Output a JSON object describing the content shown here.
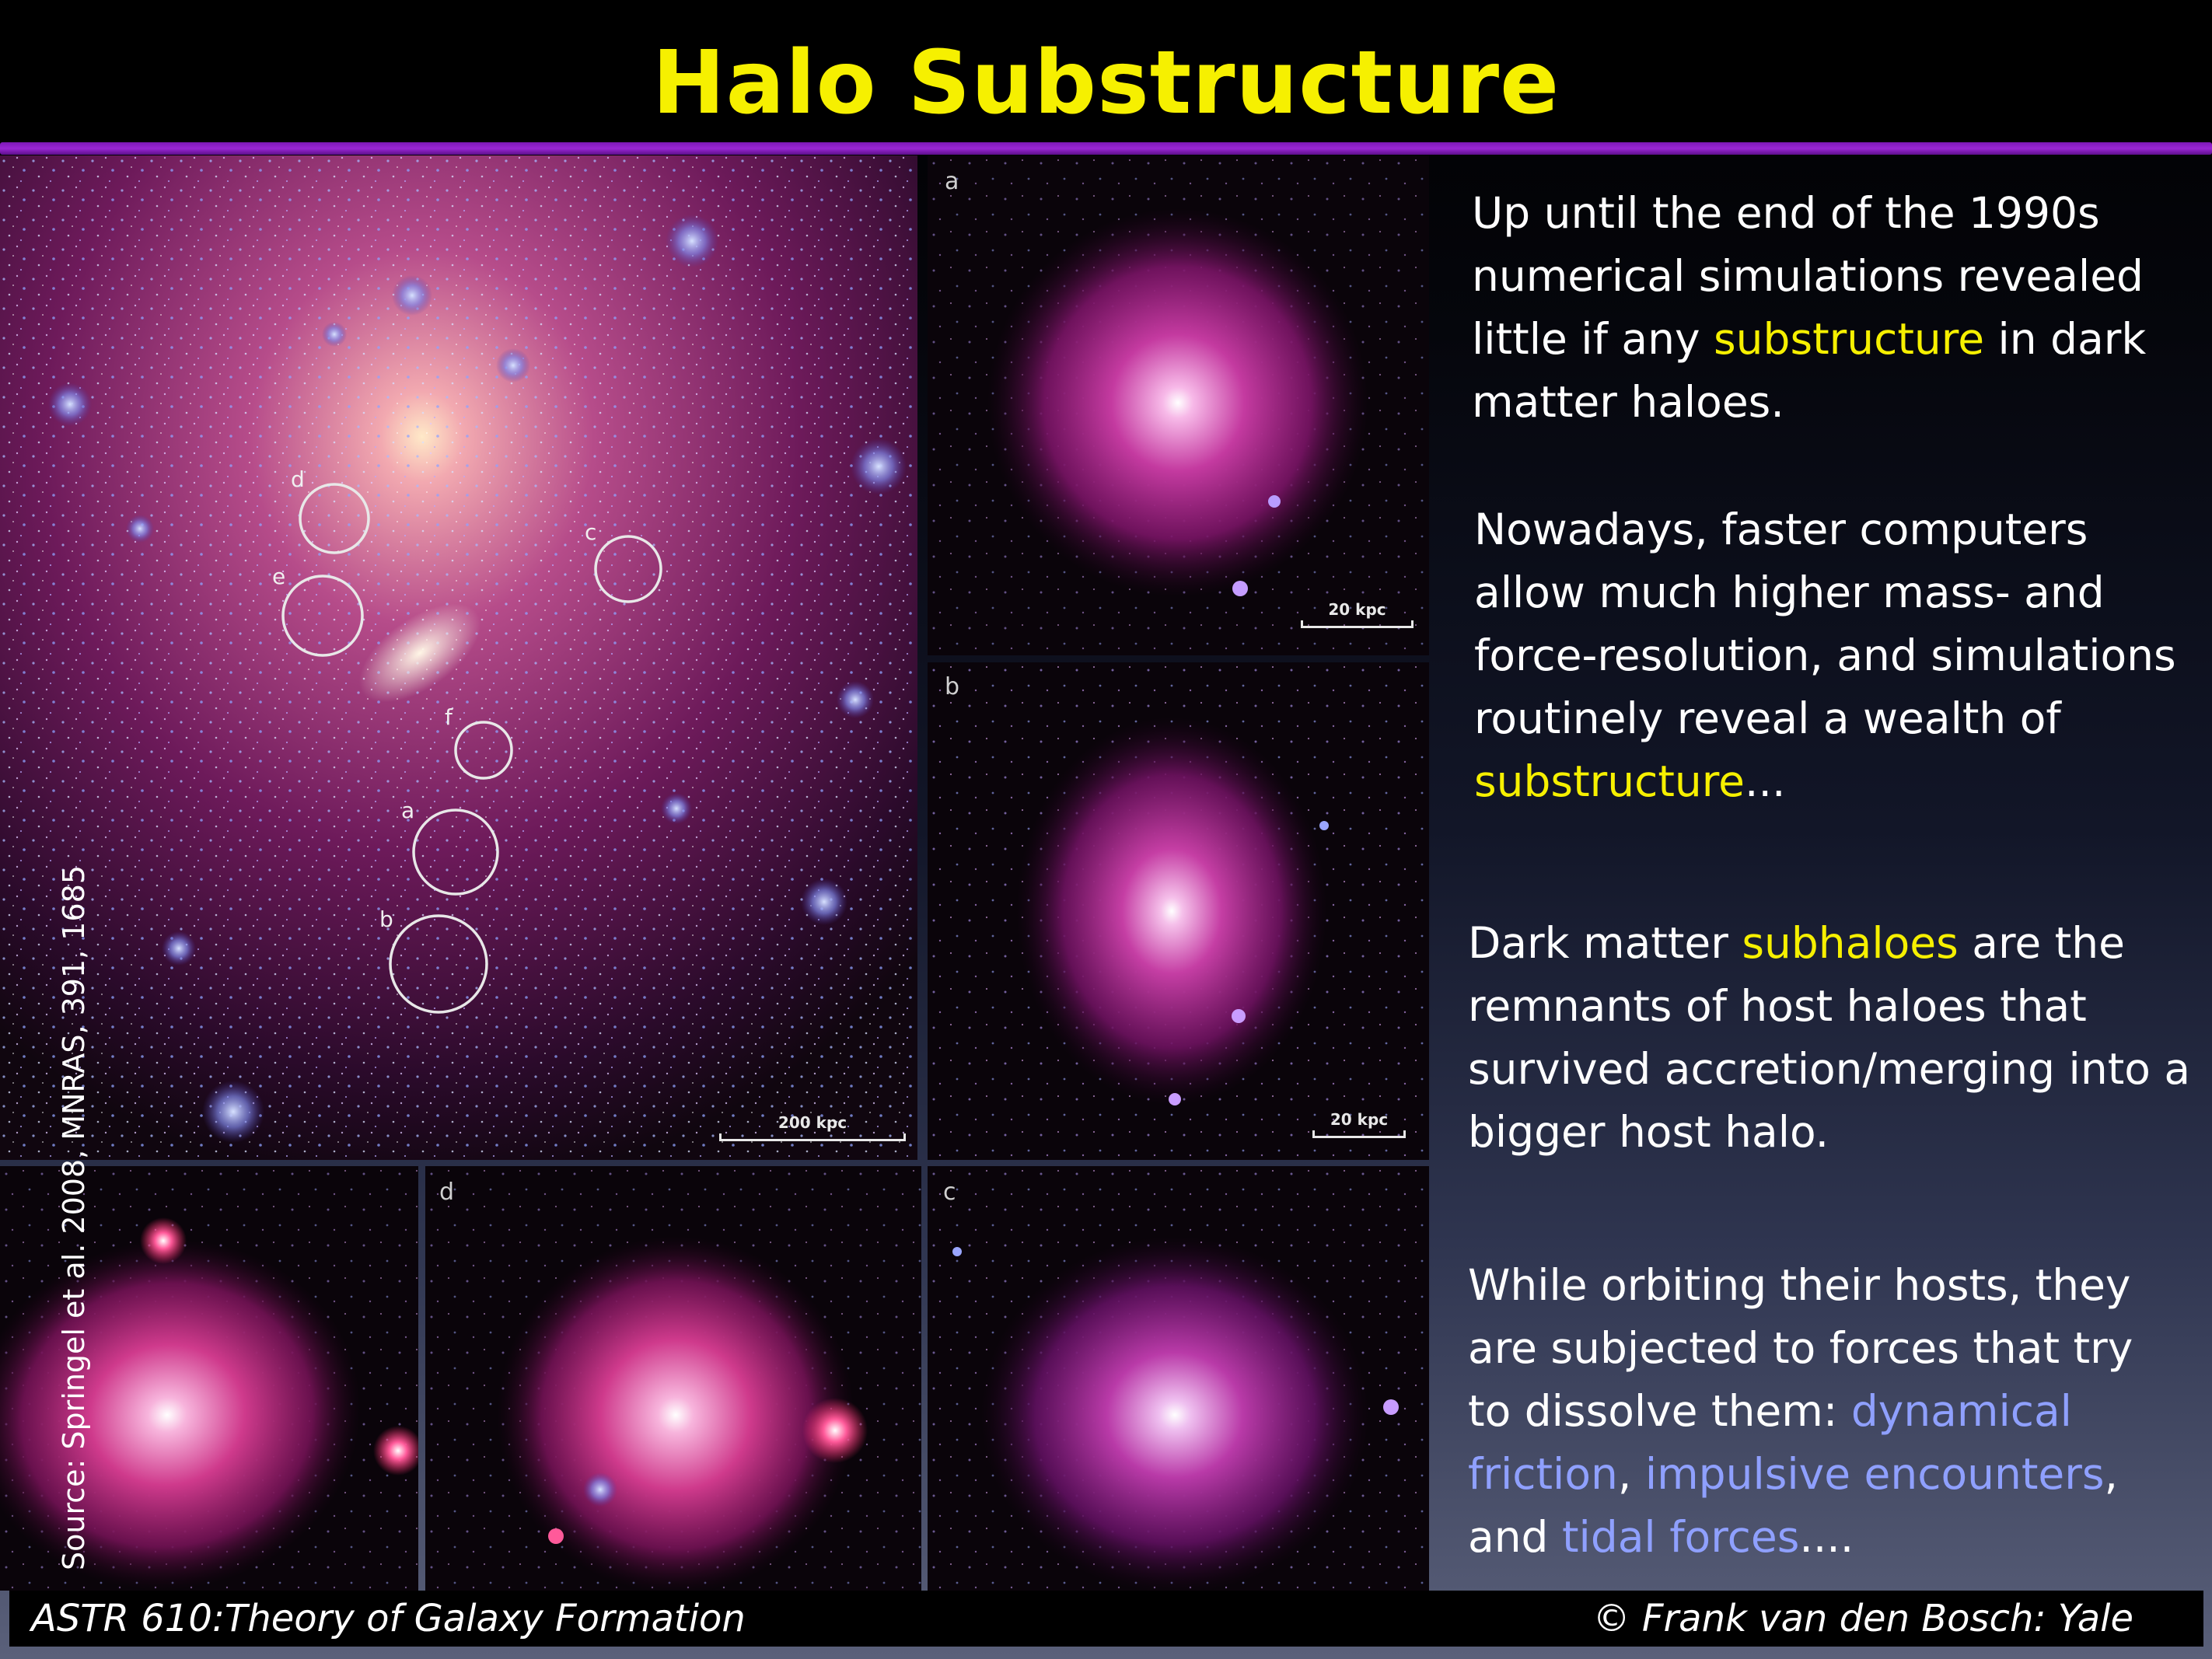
{
  "slide": {
    "title": "Halo Substructure",
    "source_credit": "Source: Springel et al. 2008, MNRAS, 391, 1685",
    "main_panel": {
      "circle_labels": [
        "d",
        "e",
        "c",
        "f",
        "a",
        "b"
      ],
      "scale_label": "200 kpc"
    },
    "panels": [
      {
        "letter": "a",
        "scale_label": "20 kpc"
      },
      {
        "letter": "b",
        "scale_label": "20 kpc"
      },
      {
        "letter": "",
        "scale_label": ""
      },
      {
        "letter": "d",
        "scale_label": ""
      },
      {
        "letter": "c",
        "scale_label": ""
      }
    ],
    "paragraphs": [
      {
        "lines": [
          [
            {
              "t": "Up until the end of the 1990s"
            }
          ],
          [
            {
              "t": "numerical simulations revealed"
            }
          ],
          [
            {
              "t": "little if any "
            },
            {
              "t": "substructure",
              "hl": "y"
            },
            {
              "t": " in dark"
            }
          ],
          [
            {
              "t": "matter haloes."
            }
          ]
        ]
      },
      {
        "lines": [
          [
            {
              "t": "Nowadays, faster computers"
            }
          ],
          [
            {
              "t": "allow much higher mass- and"
            }
          ],
          [
            {
              "t": "force-resolution, and simulations"
            }
          ],
          [
            {
              "t": "routinely reveal a wealth of"
            }
          ],
          [
            {
              "t": "substructure",
              "hl": "y"
            },
            {
              "t": "..."
            }
          ]
        ]
      },
      {
        "lines": [
          [
            {
              "t": "Dark matter "
            },
            {
              "t": "subhaloes",
              "hl": "y"
            },
            {
              "t": " are the"
            }
          ],
          [
            {
              "t": "remnants of host haloes that"
            }
          ],
          [
            {
              "t": "survived accretion/merging into a"
            }
          ],
          [
            {
              "t": "bigger host halo."
            }
          ]
        ]
      },
      {
        "lines": [
          [
            {
              "t": "While orbiting their hosts, they"
            }
          ],
          [
            {
              "t": "are subjected to forces that try"
            }
          ],
          [
            {
              "t": "to dissolve them: "
            },
            {
              "t": "dynamical",
              "hl": "b"
            }
          ],
          [
            {
              "t": "friction",
              "hl": "b"
            },
            {
              "t": ", "
            },
            {
              "t": "impulsive encounters",
              "hl": "b"
            },
            {
              "t": ","
            }
          ],
          [
            {
              "t": "and "
            },
            {
              "t": "tidal forces",
              "hl": "b"
            },
            {
              "t": "...."
            }
          ]
        ]
      }
    ],
    "footer": {
      "left": "ASTR 610:Theory of Galaxy Formation",
      "right": "© Frank van den Bosch: Yale"
    },
    "colors": {
      "title": "#f6f000",
      "title_rule": "#8a1fc4",
      "highlight_yellow": "#f6f000",
      "highlight_blue": "#8fa0ff"
    }
  }
}
